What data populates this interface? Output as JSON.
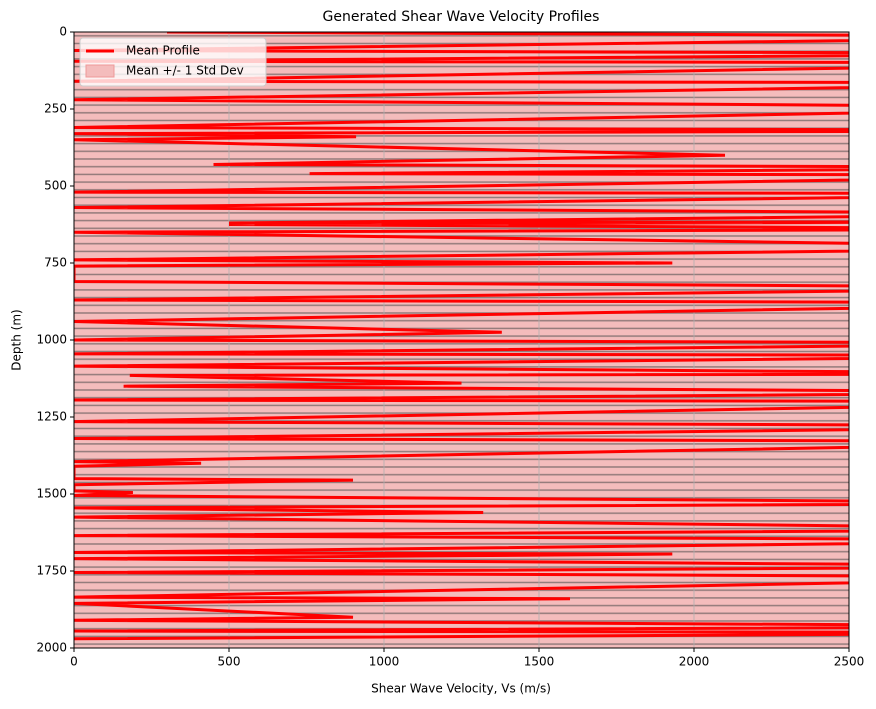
{
  "chart_data": {
    "type": "profile",
    "title": "Generated Shear Wave Velocity Profiles",
    "xlabel": "Shear Wave Velocity, Vs (m/s)",
    "ylabel": "Depth (m)",
    "xlim": [
      0,
      2500
    ],
    "xticks": [
      0,
      500,
      1000,
      1500,
      2000,
      2500
    ],
    "ylim": [
      2000,
      0
    ],
    "yticks": [
      0,
      250,
      500,
      750,
      1000,
      1250,
      1500,
      1750,
      2000
    ],
    "grid": true,
    "legend": "upper left",
    "band": {
      "name": "Mean +/- 1 Std Dev",
      "color": "#f4bcbc",
      "depth": [
        0,
        2000
      ],
      "lower": [
        -1000,
        -1000
      ],
      "upper": [
        4000,
        4000
      ]
    },
    "series": [
      {
        "name": "Mean Profile",
        "color": "#ff0000",
        "x": [
          300,
          3500,
          0,
          3500,
          0,
          3500,
          0,
          3500,
          0,
          3500,
          0,
          3500,
          0,
          910,
          0,
          2100,
          450,
          3500,
          760,
          3500,
          0,
          3500,
          0,
          3500,
          500,
          3500,
          500,
          3500,
          0,
          3500,
          0,
          1930,
          0,
          0,
          3500,
          0,
          3500,
          0,
          1380,
          0,
          3500,
          0,
          3500,
          0,
          3500,
          180,
          1250,
          160,
          3500,
          0,
          3500,
          0,
          3500,
          0,
          3500,
          0,
          410,
          0,
          0,
          900,
          0,
          0,
          190,
          0,
          3500,
          0,
          1320,
          0,
          3500,
          0,
          3500,
          0,
          1930,
          0,
          3500,
          0,
          3500,
          0,
          1600,
          0,
          900,
          0,
          3500,
          0,
          3500,
          0
        ],
        "y": [
          0,
          15,
          60,
          70,
          95,
          100,
          160,
          165,
          220,
          245,
          310,
          320,
          330,
          340,
          350,
          400,
          430,
          440,
          460,
          465,
          520,
          525,
          570,
          590,
          620,
          615,
          625,
          640,
          650,
          700,
          740,
          750,
          760,
          810,
          830,
          870,
          880,
          940,
          975,
          1000,
          1010,
          1045,
          1050,
          1085,
          1110,
          1115,
          1140,
          1150,
          1170,
          1195,
          1200,
          1265,
          1280,
          1320,
          1330,
          1395,
          1400,
          1410,
          1450,
          1455,
          1470,
          1490,
          1495,
          1505,
          1530,
          1545,
          1560,
          1575,
          1615,
          1635,
          1650,
          1690,
          1695,
          1710,
          1735,
          1755,
          1770,
          1835,
          1840,
          1855,
          1900,
          1910,
          1930,
          1945,
          1950,
          1970
        ]
      }
    ]
  }
}
